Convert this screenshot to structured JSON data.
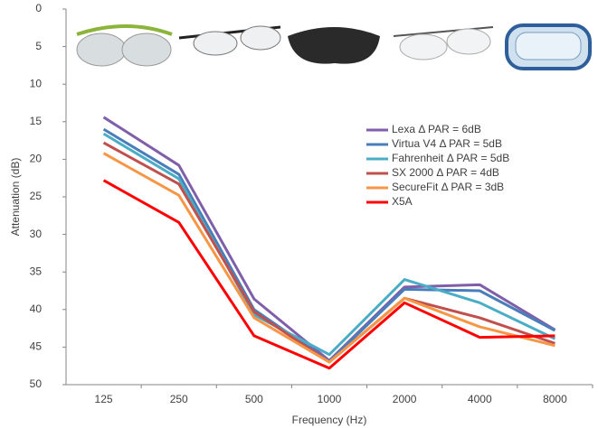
{
  "chart_data": {
    "type": "line",
    "x_label": "Frequency (Hz)",
    "y_label": "Attenuation (dB)",
    "categories": [
      "125",
      "250",
      "500",
      "1000",
      "2000",
      "4000",
      "8000"
    ],
    "ylim": [
      50,
      0
    ],
    "yticks": [
      0,
      5,
      10,
      15,
      20,
      25,
      30,
      35,
      40,
      45,
      50
    ],
    "legend": "upper right",
    "grid": false,
    "series": [
      {
        "name": "Lexa  Δ PAR = 6dB",
        "color": "#7f5fa9",
        "values": [
          14.4,
          20.8,
          38.6,
          46.8,
          37.0,
          36.7,
          42.7
        ]
      },
      {
        "name": "Virtua V4  Δ PAR = 5dB",
        "color": "#4a7ebb",
        "values": [
          16.0,
          22.0,
          40.0,
          46.9,
          37.3,
          37.5,
          42.8
        ]
      },
      {
        "name": "Fahrenheit  Δ PAR = 5dB",
        "color": "#4bacc6",
        "values": [
          16.6,
          22.6,
          40.7,
          46.0,
          36.0,
          39.1,
          43.9
        ]
      },
      {
        "name": "SX 2000  Δ PAR = 4dB",
        "color": "#c0504d",
        "values": [
          17.8,
          23.3,
          40.3,
          47.0,
          38.5,
          41.1,
          44.5
        ]
      },
      {
        "name": "SecureFit  Δ PAR = 3dB",
        "color": "#f79646",
        "values": [
          19.2,
          24.8,
          41.1,
          47.0,
          38.5,
          42.3,
          44.8
        ]
      },
      {
        "name": "X5A",
        "color": "#ff0000",
        "values": [
          22.8,
          28.4,
          43.5,
          47.8,
          39.1,
          43.7,
          43.5
        ]
      }
    ]
  }
}
